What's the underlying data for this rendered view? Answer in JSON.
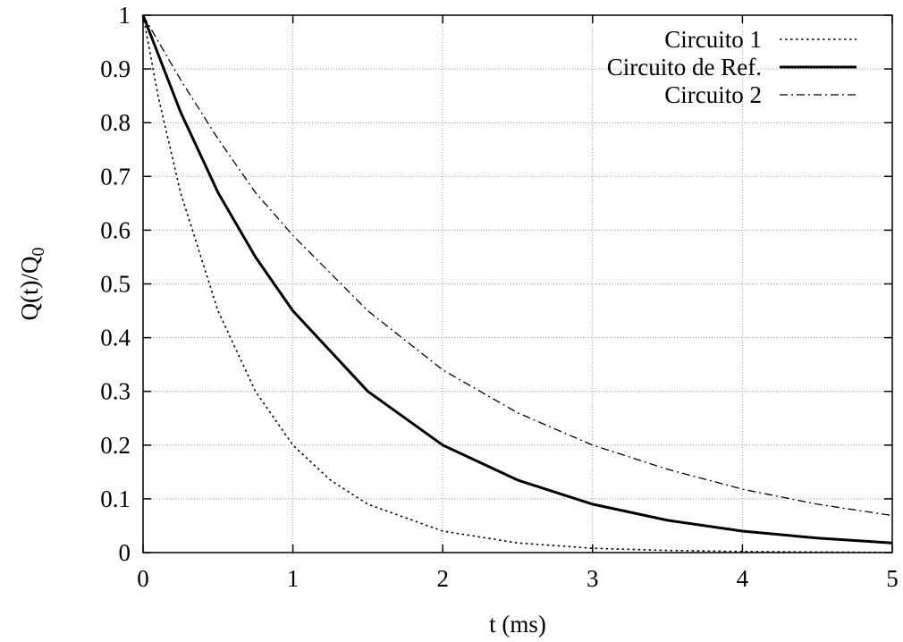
{
  "chart_data": {
    "type": "line",
    "title": "",
    "xlabel": "t (ms)",
    "ylabel_main": "Q(t)/Q",
    "ylabel_sub": "0",
    "xlim": [
      0,
      5
    ],
    "ylim": [
      0,
      1
    ],
    "x_ticks": [
      "0",
      "1",
      "2",
      "3",
      "4",
      "5"
    ],
    "y_ticks": [
      "0",
      "0.1",
      "0.2",
      "0.3",
      "0.4",
      "0.5",
      "0.6",
      "0.7",
      "0.8",
      "0.9",
      "1"
    ],
    "grid": true,
    "legend_position": "top-right",
    "series": [
      {
        "name": "Circuito 1",
        "line_style": "dotted",
        "x": [
          0,
          0.1,
          0.25,
          0.5,
          0.75,
          1,
          1.25,
          1.5,
          2,
          2.5,
          3,
          3.5,
          4,
          4.5,
          5
        ],
        "y": [
          1,
          0.85,
          0.67,
          0.45,
          0.3,
          0.2,
          0.135,
          0.09,
          0.04,
          0.018,
          0.008,
          0.004,
          0.002,
          0.001,
          0.0004
        ]
      },
      {
        "name": "Circuito de Ref.",
        "line_style": "solid",
        "x": [
          0,
          0.25,
          0.5,
          0.75,
          1,
          1.5,
          2,
          2.5,
          3,
          3.5,
          4,
          4.5,
          5
        ],
        "y": [
          1,
          0.82,
          0.67,
          0.55,
          0.45,
          0.3,
          0.2,
          0.135,
          0.09,
          0.06,
          0.04,
          0.027,
          0.018
        ]
      },
      {
        "name": "Circuito 2",
        "line_style": "dash-dot",
        "x": [
          0,
          0.25,
          0.5,
          0.75,
          1,
          1.5,
          2,
          2.5,
          3,
          3.5,
          4,
          4.5,
          5
        ],
        "y": [
          1,
          0.88,
          0.77,
          0.67,
          0.59,
          0.45,
          0.34,
          0.26,
          0.2,
          0.155,
          0.118,
          0.09,
          0.069
        ]
      }
    ]
  }
}
